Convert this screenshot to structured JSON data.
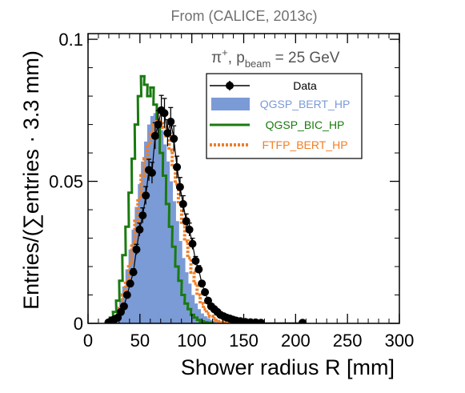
{
  "chart_data": {
    "type": "histogram",
    "title": "From (CALICE, 2013c)",
    "annotation": {
      "particle": "π",
      "charge": "+",
      "p_label": ", p",
      "p_sub": "beam",
      "rest": " = 25 GeV"
    },
    "xlabel": "Shower radius R [mm]",
    "ylabel": "Entries/(∑entries · 3.3 mm)",
    "xlim": [
      0,
      300
    ],
    "ylim": [
      0,
      0.102
    ],
    "xticks": [
      0,
      50,
      100,
      150,
      200,
      250,
      300
    ],
    "xtick_labels": [
      "0",
      "50",
      "100",
      "150",
      "200",
      "250",
      "300"
    ],
    "yticks": [
      0,
      0.05,
      0.1
    ],
    "ytick_labels": [
      "0",
      "0.05",
      "0.1"
    ],
    "bin_width": 3.3,
    "legend_position": "upper-right",
    "series": [
      {
        "name": "QGSP_BERT_HP",
        "style": "filled-histogram",
        "color": "#7b9bd6",
        "points": [
          [
            18,
            0
          ],
          [
            21,
            0.001
          ],
          [
            24,
            0.002
          ],
          [
            27,
            0.004
          ],
          [
            30,
            0.008
          ],
          [
            33,
            0.013
          ],
          [
            36,
            0.019
          ],
          [
            39,
            0.026
          ],
          [
            42,
            0.033
          ],
          [
            45,
            0.041
          ],
          [
            48,
            0.049
          ],
          [
            51,
            0.057
          ],
          [
            54,
            0.064
          ],
          [
            57,
            0.07
          ],
          [
            60,
            0.073
          ],
          [
            63,
            0.074
          ],
          [
            66,
            0.072
          ],
          [
            69,
            0.068
          ],
          [
            72,
            0.063
          ],
          [
            75,
            0.057
          ],
          [
            78,
            0.05
          ],
          [
            81,
            0.043
          ],
          [
            84,
            0.036
          ],
          [
            87,
            0.029
          ],
          [
            90,
            0.023
          ],
          [
            93,
            0.018
          ],
          [
            96,
            0.014
          ],
          [
            99,
            0.01
          ],
          [
            102,
            0.007
          ],
          [
            105,
            0.005
          ],
          [
            108,
            0.0035
          ],
          [
            111,
            0.0025
          ],
          [
            114,
            0.0018
          ],
          [
            117,
            0.0012
          ],
          [
            120,
            0.0008
          ],
          [
            123,
            0.0005
          ],
          [
            126,
            0.0003
          ],
          [
            129,
            0.0001
          ]
        ]
      },
      {
        "name": "QGSP_BIC_HP",
        "style": "step",
        "color": "#1a7a10",
        "points": [
          [
            18,
            0
          ],
          [
            21,
            0.002
          ],
          [
            24,
            0.004
          ],
          [
            27,
            0.008
          ],
          [
            30,
            0.015
          ],
          [
            33,
            0.024
          ],
          [
            36,
            0.034
          ],
          [
            39,
            0.046
          ],
          [
            42,
            0.058
          ],
          [
            45,
            0.07
          ],
          [
            48,
            0.08
          ],
          [
            51,
            0.087
          ],
          [
            54,
            0.084
          ],
          [
            57,
            0.08
          ],
          [
            60,
            0.083
          ],
          [
            63,
            0.077
          ],
          [
            66,
            0.07
          ],
          [
            69,
            0.06
          ],
          [
            72,
            0.052
          ],
          [
            75,
            0.042
          ],
          [
            78,
            0.034
          ],
          [
            81,
            0.027
          ],
          [
            84,
            0.02
          ],
          [
            87,
            0.015
          ],
          [
            90,
            0.01
          ],
          [
            93,
            0.007
          ],
          [
            96,
            0.005
          ],
          [
            99,
            0.003
          ],
          [
            102,
            0.002
          ],
          [
            105,
            0.0012
          ],
          [
            108,
            0.0007
          ],
          [
            111,
            0.0004
          ],
          [
            114,
            0.0002
          ],
          [
            117,
            0.0001
          ]
        ]
      },
      {
        "name": "FTFP_BERT_HP",
        "style": "dotted-step",
        "color": "#f07e26",
        "points": [
          [
            18,
            0
          ],
          [
            21,
            0.001
          ],
          [
            24,
            0.002
          ],
          [
            27,
            0.003
          ],
          [
            30,
            0.006
          ],
          [
            33,
            0.01
          ],
          [
            36,
            0.015
          ],
          [
            39,
            0.021
          ],
          [
            42,
            0.028
          ],
          [
            45,
            0.036
          ],
          [
            48,
            0.044
          ],
          [
            51,
            0.052
          ],
          [
            54,
            0.058
          ],
          [
            57,
            0.063
          ],
          [
            60,
            0.067
          ],
          [
            63,
            0.07
          ],
          [
            66,
            0.071
          ],
          [
            69,
            0.071
          ],
          [
            72,
            0.069
          ],
          [
            75,
            0.066
          ],
          [
            78,
            0.061
          ],
          [
            81,
            0.055
          ],
          [
            84,
            0.049
          ],
          [
            87,
            0.042
          ],
          [
            90,
            0.035
          ],
          [
            93,
            0.029
          ],
          [
            96,
            0.023
          ],
          [
            99,
            0.018
          ],
          [
            102,
            0.014
          ],
          [
            105,
            0.01
          ],
          [
            108,
            0.007
          ],
          [
            111,
            0.005
          ],
          [
            114,
            0.0035
          ],
          [
            117,
            0.0025
          ],
          [
            120,
            0.0017
          ],
          [
            123,
            0.0011
          ],
          [
            126,
            0.0007
          ],
          [
            129,
            0.0004
          ],
          [
            132,
            0.0002
          ]
        ]
      },
      {
        "name": "Data",
        "style": "markers-errorbars",
        "color": "#000000",
        "points": [
          [
            18,
            0.0003
          ],
          [
            21,
            0.001
          ],
          [
            24,
            0.0015
          ],
          [
            27,
            0.002
          ],
          [
            30,
            0.004
          ],
          [
            33,
            0.006
          ],
          [
            36,
            0.01
          ],
          [
            39,
            0.014
          ],
          [
            42,
            0.018
          ],
          [
            45,
            0.026
          ],
          [
            48,
            0.033
          ],
          [
            51,
            0.038
          ],
          [
            54,
            0.045
          ],
          [
            57,
            0.054
          ],
          [
            60,
            0.053
          ],
          [
            63,
            0.066
          ],
          [
            66,
            0.07
          ],
          [
            69,
            0.075
          ],
          [
            72,
            0.074
          ],
          [
            75,
            0.067
          ],
          [
            78,
            0.071
          ],
          [
            81,
            0.065
          ],
          [
            84,
            0.055
          ],
          [
            87,
            0.048
          ],
          [
            90,
            0.042
          ],
          [
            93,
            0.036
          ],
          [
            96,
            0.033
          ],
          [
            99,
            0.028
          ],
          [
            102,
            0.022
          ],
          [
            105,
            0.019
          ],
          [
            108,
            0.014
          ],
          [
            111,
            0.011
          ],
          [
            114,
            0.008
          ],
          [
            117,
            0.006
          ],
          [
            120,
            0.005
          ],
          [
            123,
            0.004
          ],
          [
            126,
            0.003
          ],
          [
            129,
            0.0025
          ],
          [
            132,
            0.002
          ],
          [
            135,
            0.0017
          ],
          [
            138,
            0.0013
          ],
          [
            141,
            0.001
          ],
          [
            145,
            0.0008
          ],
          [
            150,
            0.0005
          ],
          [
            155,
            0.0004
          ],
          [
            160,
            0.0003
          ],
          [
            165,
            0.0002
          ],
          [
            205,
            0.0002
          ]
        ]
      }
    ]
  }
}
